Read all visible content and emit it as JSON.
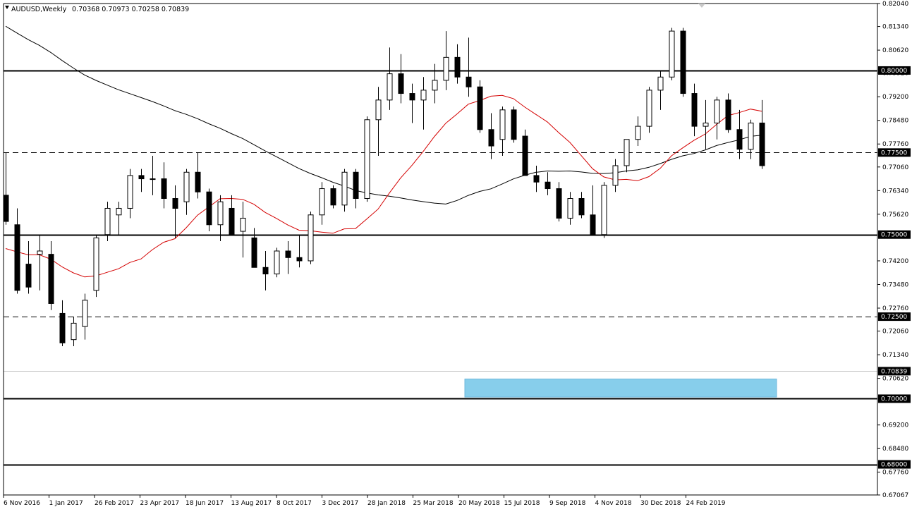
{
  "header": {
    "symbol": "AUDUSD,Weekly",
    "ohlc": "0.70368 0.70973 0.70258 0.70839"
  },
  "colors": {
    "background": "#ffffff",
    "candle": "#000000",
    "ma_long": "#000000",
    "ma_short": "#d40000",
    "support_zone": "#87ceeb"
  },
  "chart_data": {
    "type": "candlestick",
    "title": "AUDUSD,Weekly",
    "ylim": [
      0.67067,
      0.8204
    ],
    "y_ticks": [
      "0.82040",
      "0.81340",
      "0.80620",
      "0.79920",
      "0.79200",
      "0.78480",
      "0.77760",
      "0.77060",
      "0.76340",
      "0.75620",
      "0.74200",
      "0.73480",
      "0.72760",
      "0.72060",
      "0.71340",
      "0.70620",
      "0.69200",
      "0.68480",
      "0.67760",
      "0.67067"
    ],
    "x_ticks": [
      "6 Nov 2016",
      "1 Jan 2017",
      "26 Feb 2017",
      "23 Apr 2017",
      "18 Jun 2017",
      "13 Aug 2017",
      "8 Oct 2017",
      "3 Dec 2017",
      "28 Jan 2018",
      "25 Mar 2018",
      "20 May 2018",
      "15 Jul 2018",
      "9 Sep 2018",
      "4 Nov 2018",
      "30 Dec 2018",
      "24 Feb 2019"
    ],
    "horizontal_levels": [
      {
        "value": 0.8,
        "label": "0.80000",
        "style": "solid"
      },
      {
        "value": 0.775,
        "label": "0.77500",
        "style": "dashed"
      },
      {
        "value": 0.75,
        "label": "0.75000",
        "style": "solid"
      },
      {
        "value": 0.725,
        "label": "0.72500",
        "style": "dashed"
      },
      {
        "value": 0.7,
        "label": "0.70000",
        "style": "solid"
      },
      {
        "value": 0.68,
        "label": "0.68000",
        "style": "solid"
      }
    ],
    "current_price": {
      "value": 0.70839,
      "label": "0.70839"
    },
    "support_zone": {
      "low": 0.7005,
      "high": 0.706,
      "from_week": 41,
      "to_week": 68
    },
    "candles": [
      {
        "o": 0.762,
        "h": 0.775,
        "l": 0.753,
        "c": 0.754
      },
      {
        "o": 0.753,
        "h": 0.758,
        "l": 0.732,
        "c": 0.733
      },
      {
        "o": 0.741,
        "h": 0.748,
        "l": 0.732,
        "c": 0.734
      },
      {
        "o": 0.744,
        "h": 0.75,
        "l": 0.733,
        "c": 0.745
      },
      {
        "o": 0.744,
        "h": 0.748,
        "l": 0.727,
        "c": 0.729
      },
      {
        "o": 0.726,
        "h": 0.73,
        "l": 0.716,
        "c": 0.717
      },
      {
        "o": 0.718,
        "h": 0.725,
        "l": 0.716,
        "c": 0.723
      },
      {
        "o": 0.722,
        "h": 0.732,
        "l": 0.718,
        "c": 0.73
      },
      {
        "o": 0.733,
        "h": 0.75,
        "l": 0.731,
        "c": 0.749
      },
      {
        "o": 0.75,
        "h": 0.76,
        "l": 0.748,
        "c": 0.758
      },
      {
        "o": 0.756,
        "h": 0.76,
        "l": 0.75,
        "c": 0.758
      },
      {
        "o": 0.758,
        "h": 0.77,
        "l": 0.755,
        "c": 0.768
      },
      {
        "o": 0.768,
        "h": 0.77,
        "l": 0.763,
        "c": 0.767
      },
      {
        "o": 0.767,
        "h": 0.774,
        "l": 0.762,
        "c": 0.767
      },
      {
        "o": 0.767,
        "h": 0.772,
        "l": 0.758,
        "c": 0.761
      },
      {
        "o": 0.761,
        "h": 0.765,
        "l": 0.749,
        "c": 0.758
      },
      {
        "o": 0.76,
        "h": 0.77,
        "l": 0.756,
        "c": 0.769
      },
      {
        "o": 0.769,
        "h": 0.775,
        "l": 0.761,
        "c": 0.763
      },
      {
        "o": 0.763,
        "h": 0.764,
        "l": 0.751,
        "c": 0.753
      },
      {
        "o": 0.753,
        "h": 0.762,
        "l": 0.748,
        "c": 0.76
      },
      {
        "o": 0.758,
        "h": 0.762,
        "l": 0.75,
        "c": 0.75
      },
      {
        "o": 0.751,
        "h": 0.76,
        "l": 0.743,
        "c": 0.755
      },
      {
        "o": 0.749,
        "h": 0.752,
        "l": 0.74,
        "c": 0.74
      },
      {
        "o": 0.74,
        "h": 0.745,
        "l": 0.733,
        "c": 0.738
      },
      {
        "o": 0.738,
        "h": 0.746,
        "l": 0.737,
        "c": 0.745
      },
      {
        "o": 0.745,
        "h": 0.748,
        "l": 0.738,
        "c": 0.743
      },
      {
        "o": 0.743,
        "h": 0.75,
        "l": 0.74,
        "c": 0.742
      },
      {
        "o": 0.742,
        "h": 0.757,
        "l": 0.741,
        "c": 0.756
      },
      {
        "o": 0.756,
        "h": 0.766,
        "l": 0.753,
        "c": 0.764
      },
      {
        "o": 0.764,
        "h": 0.765,
        "l": 0.758,
        "c": 0.759
      },
      {
        "o": 0.759,
        "h": 0.77,
        "l": 0.757,
        "c": 0.769
      },
      {
        "o": 0.769,
        "h": 0.77,
        "l": 0.758,
        "c": 0.761
      },
      {
        "o": 0.761,
        "h": 0.786,
        "l": 0.76,
        "c": 0.785
      },
      {
        "o": 0.785,
        "h": 0.795,
        "l": 0.774,
        "c": 0.791
      },
      {
        "o": 0.791,
        "h": 0.807,
        "l": 0.788,
        "c": 0.799
      },
      {
        "o": 0.799,
        "h": 0.805,
        "l": 0.79,
        "c": 0.793
      },
      {
        "o": 0.793,
        "h": 0.796,
        "l": 0.784,
        "c": 0.791
      },
      {
        "o": 0.791,
        "h": 0.798,
        "l": 0.782,
        "c": 0.794
      },
      {
        "o": 0.794,
        "h": 0.802,
        "l": 0.79,
        "c": 0.797
      },
      {
        "o": 0.797,
        "h": 0.812,
        "l": 0.794,
        "c": 0.804
      },
      {
        "o": 0.804,
        "h": 0.808,
        "l": 0.796,
        "c": 0.798
      },
      {
        "o": 0.798,
        "h": 0.81,
        "l": 0.792,
        "c": 0.795
      },
      {
        "o": 0.795,
        "h": 0.797,
        "l": 0.781,
        "c": 0.782
      },
      {
        "o": 0.782,
        "h": 0.787,
        "l": 0.773,
        "c": 0.777
      },
      {
        "o": 0.779,
        "h": 0.789,
        "l": 0.774,
        "c": 0.788
      },
      {
        "o": 0.788,
        "h": 0.789,
        "l": 0.778,
        "c": 0.779
      },
      {
        "o": 0.78,
        "h": 0.782,
        "l": 0.768,
        "c": 0.768
      },
      {
        "o": 0.768,
        "h": 0.771,
        "l": 0.763,
        "c": 0.766
      },
      {
        "o": 0.766,
        "h": 0.769,
        "l": 0.762,
        "c": 0.764
      },
      {
        "o": 0.764,
        "h": 0.766,
        "l": 0.754,
        "c": 0.755
      },
      {
        "o": 0.755,
        "h": 0.763,
        "l": 0.753,
        "c": 0.761
      },
      {
        "o": 0.761,
        "h": 0.763,
        "l": 0.755,
        "c": 0.756
      },
      {
        "o": 0.756,
        "h": 0.765,
        "l": 0.75,
        "c": 0.75
      },
      {
        "o": 0.75,
        "h": 0.766,
        "l": 0.749,
        "c": 0.765
      },
      {
        "o": 0.765,
        "h": 0.773,
        "l": 0.763,
        "c": 0.771
      },
      {
        "o": 0.771,
        "h": 0.779,
        "l": 0.769,
        "c": 0.779
      },
      {
        "o": 0.779,
        "h": 0.786,
        "l": 0.777,
        "c": 0.783
      },
      {
        "o": 0.783,
        "h": 0.795,
        "l": 0.781,
        "c": 0.794
      },
      {
        "o": 0.794,
        "h": 0.8,
        "l": 0.788,
        "c": 0.798
      },
      {
        "o": 0.798,
        "h": 0.813,
        "l": 0.797,
        "c": 0.812
      },
      {
        "o": 0.812,
        "h": 0.813,
        "l": 0.792,
        "c": 0.793
      },
      {
        "o": 0.793,
        "h": 0.796,
        "l": 0.78,
        "c": 0.783
      },
      {
        "o": 0.783,
        "h": 0.791,
        "l": 0.776,
        "c": 0.784
      },
      {
        "o": 0.784,
        "h": 0.792,
        "l": 0.779,
        "c": 0.791
      },
      {
        "o": 0.791,
        "h": 0.793,
        "l": 0.781,
        "c": 0.782
      },
      {
        "o": 0.782,
        "h": 0.788,
        "l": 0.773,
        "c": 0.776
      },
      {
        "o": 0.776,
        "h": 0.785,
        "l": 0.773,
        "c": 0.784
      },
      {
        "o": 0.784,
        "h": 0.791,
        "l": 0.77,
        "c": 0.771
      }
    ]
  }
}
